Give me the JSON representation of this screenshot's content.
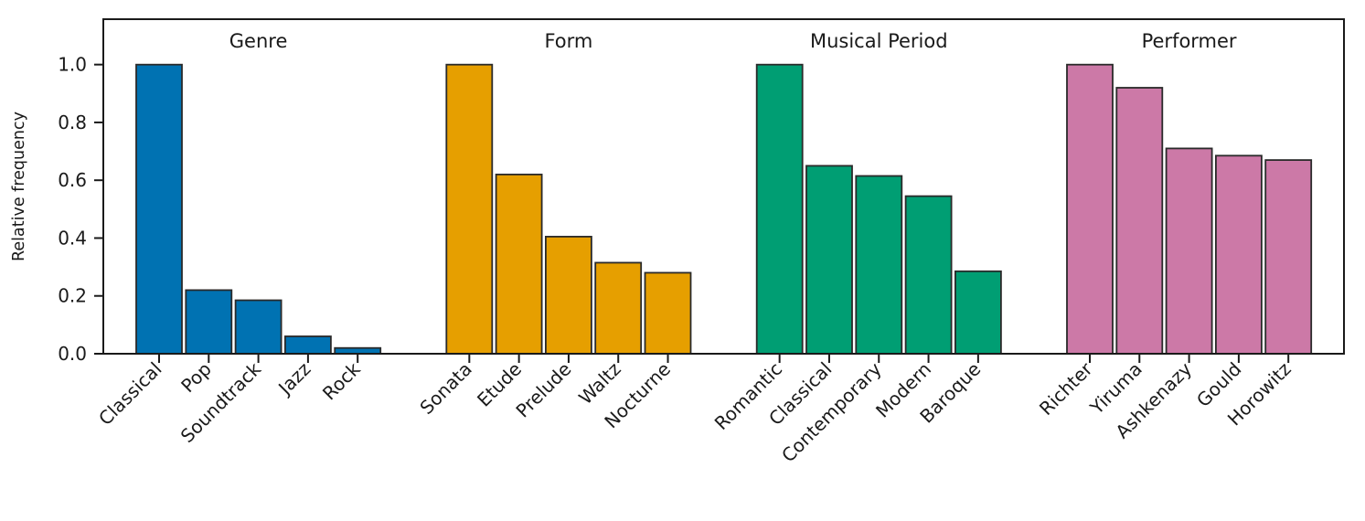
{
  "chart_data": {
    "type": "bar",
    "title": "",
    "ylabel": "Relative frequency",
    "xlabel": "",
    "ylim": [
      0,
      1.157
    ],
    "yticks": [
      0.0,
      0.2,
      0.4,
      0.6,
      0.8,
      1.0
    ],
    "grid": false,
    "legend_position": "none",
    "groups": [
      {
        "title": "Genre",
        "color": "#0072B2",
        "categories": [
          "Classical",
          "Pop",
          "Soundtrack",
          "Jazz",
          "Rock"
        ],
        "values": [
          1.0,
          0.22,
          0.185,
          0.06,
          0.02
        ]
      },
      {
        "title": "Form",
        "color": "#E69F00",
        "categories": [
          "Sonata",
          "Etude",
          "Prelude",
          "Waltz",
          "Nocturne"
        ],
        "values": [
          1.0,
          0.62,
          0.405,
          0.315,
          0.28
        ]
      },
      {
        "title": "Musical Period",
        "color": "#009E73",
        "categories": [
          "Romantic",
          "Classical",
          "Contemporary",
          "Modern",
          "Baroque"
        ],
        "values": [
          1.0,
          0.65,
          0.615,
          0.545,
          0.285
        ]
      },
      {
        "title": "Performer",
        "color": "#CC79A7",
        "categories": [
          "Richter",
          "Yiruma",
          "Ashkenazy",
          "Gould",
          "Horowitz"
        ],
        "values": [
          1.0,
          0.92,
          0.71,
          0.685,
          0.67
        ]
      }
    ],
    "bar_edge_color": "#2a2a2a",
    "axis_color": "#1a1a1a",
    "text_color": "#1a1a1a"
  }
}
